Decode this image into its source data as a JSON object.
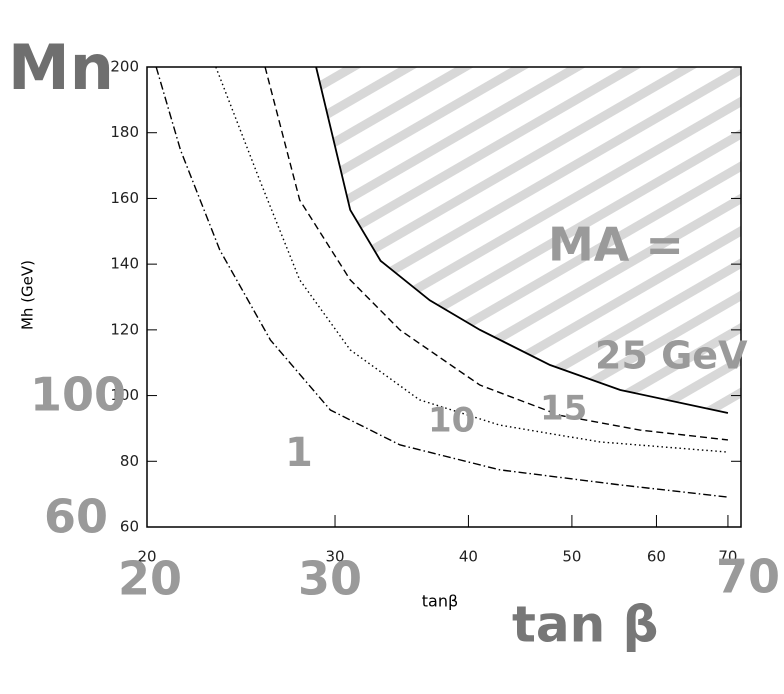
{
  "chart_data": {
    "type": "line",
    "xlabel": "tanβ",
    "ylabel": "Mh (GeV)",
    "xscale": "log",
    "xlim": [
      20,
      72
    ],
    "xticks": [
      20,
      30,
      40,
      50,
      60,
      70
    ],
    "ylim": [
      60,
      200
    ],
    "yticks": [
      60,
      80,
      100,
      120,
      140,
      160,
      180,
      200
    ],
    "annotations": [
      "Mn",
      "MA =",
      "20",
      "30",
      "70",
      "tan β",
      "100",
      "60"
    ],
    "series": [
      {
        "name": "25 GeV",
        "color": "#000000",
        "dash": "solid",
        "x": [
          28.8,
          31,
          33.1,
          36.8,
          41,
          47.7,
          55.5,
          70
        ],
        "values": [
          200,
          156.5,
          141,
          129,
          120,
          109.3,
          101.7,
          94.7
        ]
      },
      {
        "name": "15",
        "color": "#000000",
        "dash": "dashed",
        "x": [
          25.8,
          27.8,
          31,
          34.5,
          41,
          48.7,
          57.9,
          70
        ],
        "values": [
          200,
          159.5,
          135.2,
          120,
          103.2,
          94,
          89.5,
          86.5
        ]
      },
      {
        "name": "10",
        "color": "#000000",
        "dash": "dotted",
        "x": [
          23.2,
          25.5,
          27.8,
          31,
          36,
          42.8,
          53.1,
          70
        ],
        "values": [
          200,
          165.6,
          135.2,
          113.9,
          98.7,
          91,
          85.9,
          82.8
        ]
      },
      {
        "name": "1",
        "color": "#000000",
        "dash": "dashdot",
        "x": [
          20.4,
          21.5,
          23.4,
          26.1,
          29.7,
          34.5,
          42.8,
          55.5,
          70
        ],
        "values": [
          200,
          174.7,
          144.3,
          116.9,
          95.6,
          85,
          77.4,
          72.8,
          69.1
        ]
      }
    ]
  }
}
